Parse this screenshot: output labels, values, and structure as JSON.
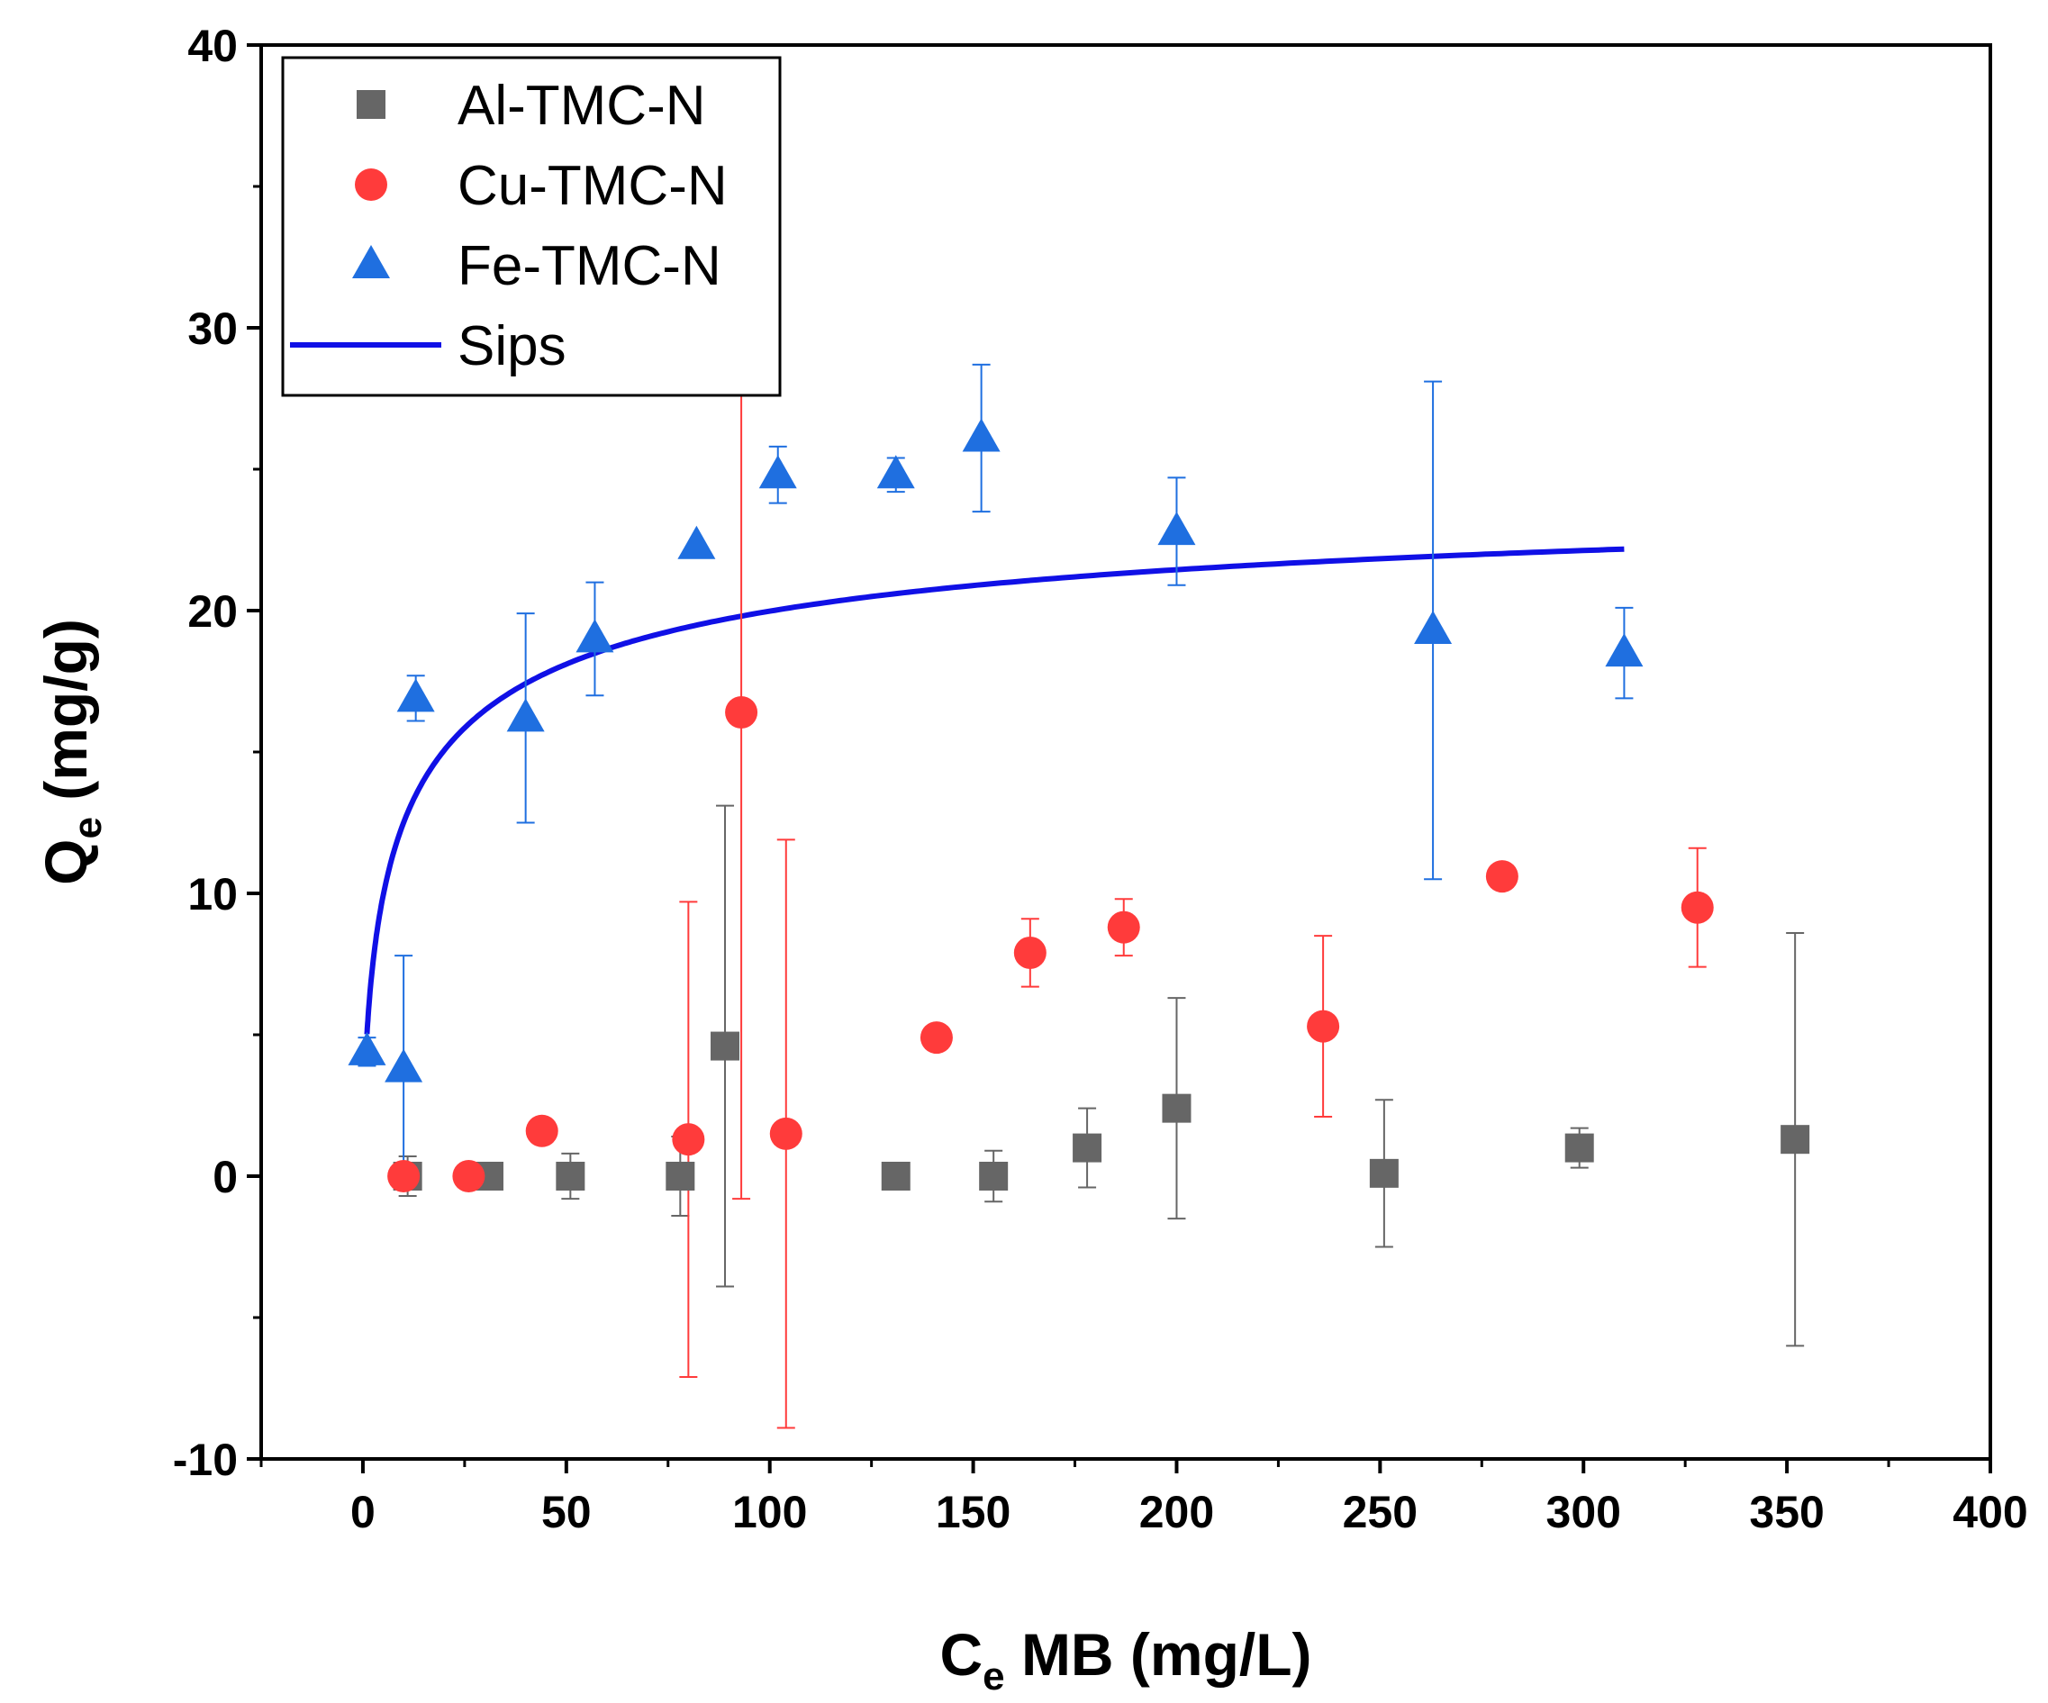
{
  "chart_data": {
    "type": "scatter",
    "xlabel": {
      "main": "C",
      "sub": "e",
      "rest": " MB (mg/L)"
    },
    "ylabel": {
      "main": "Q",
      "sub": "e",
      "rest": " (mg/g)"
    },
    "xlim": [
      -25,
      400
    ],
    "ylim": [
      -10,
      40
    ],
    "x_ticks": [
      0,
      50,
      100,
      150,
      200,
      250,
      300,
      350,
      400
    ],
    "y_ticks": [
      -10,
      0,
      10,
      20,
      30,
      40
    ],
    "x_tick_labels": [
      "0",
      "50",
      "100",
      "150",
      "200",
      "250",
      "300",
      "350",
      "400"
    ],
    "y_tick_labels": [
      "-10",
      "0",
      "10",
      "20",
      "30",
      "40"
    ],
    "legend_position": "top-left",
    "series": [
      {
        "name": "Al-TMC-N",
        "marker": "square",
        "color": "#666666",
        "points": [
          {
            "x": 11,
            "y": 0.0,
            "err": 0.7
          },
          {
            "x": 31,
            "y": 0.0,
            "err": 0.0
          },
          {
            "x": 51,
            "y": 0.0,
            "err": 0.8
          },
          {
            "x": 78,
            "y": 0.0,
            "err": 1.4
          },
          {
            "x": 89,
            "y": 4.6,
            "err": 8.5
          },
          {
            "x": 131,
            "y": 0.0,
            "err": 0.0
          },
          {
            "x": 155,
            "y": 0.0,
            "err": 0.9
          },
          {
            "x": 178,
            "y": 1.0,
            "err": 1.4
          },
          {
            "x": 200,
            "y": 2.4,
            "err": 3.9
          },
          {
            "x": 251,
            "y": 0.1,
            "err": 2.6
          },
          {
            "x": 299,
            "y": 1.0,
            "err": 0.7
          },
          {
            "x": 352,
            "y": 1.3,
            "err": 7.3
          }
        ]
      },
      {
        "name": "Cu-TMC-N",
        "marker": "circle",
        "color": "#ff3b3b",
        "points": [
          {
            "x": 10,
            "y": 0.0,
            "err": 0.0
          },
          {
            "x": 26,
            "y": 0.0,
            "err": 0.0
          },
          {
            "x": 44,
            "y": 1.6,
            "err": 0.0
          },
          {
            "x": 80,
            "y": 1.3,
            "err": 8.4
          },
          {
            "x": 93,
            "y": 16.4,
            "err": 17.2
          },
          {
            "x": 104,
            "y": 1.5,
            "err": 10.4
          },
          {
            "x": 141,
            "y": 4.9,
            "err": 0.0
          },
          {
            "x": 164,
            "y": 7.9,
            "err": 1.2
          },
          {
            "x": 187,
            "y": 8.8,
            "err": 1.0
          },
          {
            "x": 236,
            "y": 5.3,
            "err": 3.2
          },
          {
            "x": 280,
            "y": 10.6,
            "err": 0.0
          },
          {
            "x": 328,
            "y": 9.5,
            "err": 2.1
          }
        ]
      },
      {
        "name": "Fe-TMC-N",
        "marker": "triangle",
        "color": "#1f6fe0",
        "points": [
          {
            "x": 1,
            "y": 4.4,
            "err": 0.5
          },
          {
            "x": 10,
            "y": 3.8,
            "err": 4.0
          },
          {
            "x": 13,
            "y": 16.9,
            "err": 0.8
          },
          {
            "x": 40,
            "y": 16.2,
            "err": 3.7
          },
          {
            "x": 57,
            "y": 19.0,
            "err": 2.0
          },
          {
            "x": 82,
            "y": 22.3,
            "err": 0.0
          },
          {
            "x": 102,
            "y": 24.8,
            "err": 1.0
          },
          {
            "x": 131,
            "y": 24.8,
            "err": 0.6
          },
          {
            "x": 152,
            "y": 26.1,
            "err": 2.6
          },
          {
            "x": 200,
            "y": 22.8,
            "err": 1.9
          },
          {
            "x": 263,
            "y": 19.3,
            "err": 8.8
          },
          {
            "x": 310,
            "y": 18.5,
            "err": 1.6
          }
        ]
      },
      {
        "name": "Sips",
        "type": "line",
        "color": "#1010e6",
        "model": {
          "qm": 25,
          "K": 0.1,
          "n": 0.6
        },
        "x_range": [
          1,
          310
        ]
      }
    ]
  }
}
